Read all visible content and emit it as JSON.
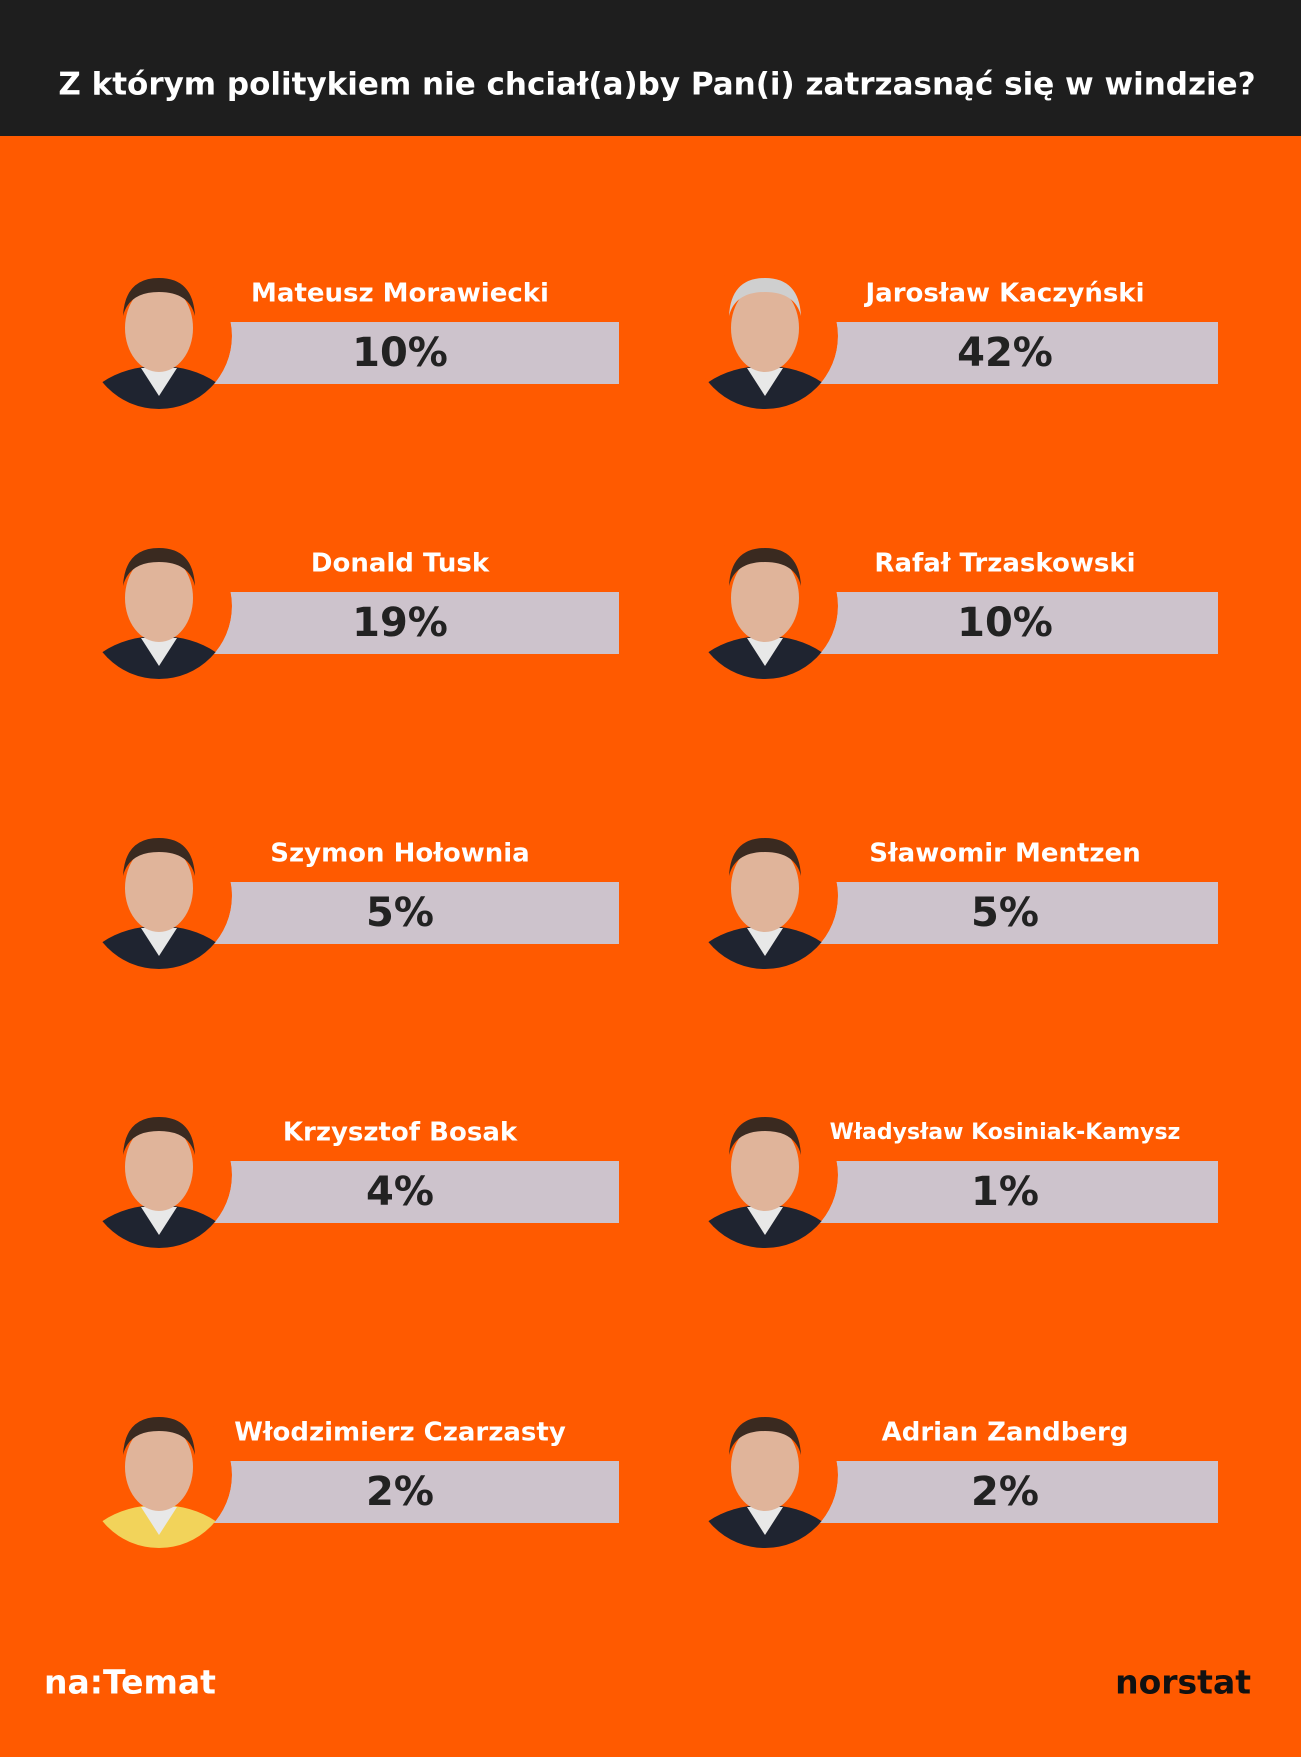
{
  "header": {
    "title": "Z którym politykiem nie chciał(a)by Pan(i) zatrzasnąć się w windzie?"
  },
  "items": [
    {
      "name": "Mateusz Morawiecki",
      "value": "10%"
    },
    {
      "name": "Jarosław Kaczyński",
      "value": "42%"
    },
    {
      "name": "Donald Tusk",
      "value": "19%"
    },
    {
      "name": "Rafał Trzaskowski",
      "value": "10%"
    },
    {
      "name": "Szymon Hołownia",
      "value": "5%"
    },
    {
      "name": "Sławomir Mentzen",
      "value": "5%"
    },
    {
      "name": "Krzysztof Bosak",
      "value": "4%"
    },
    {
      "name": "Władysław Kosiniak-Kamysz",
      "value": "1%"
    },
    {
      "name": "Włodzimierz Czarzasty",
      "value": "2%"
    },
    {
      "name": "Adrian Zandberg",
      "value": "2%"
    }
  ],
  "footer": {
    "left": "na:Temat",
    "right": "norstat"
  }
}
